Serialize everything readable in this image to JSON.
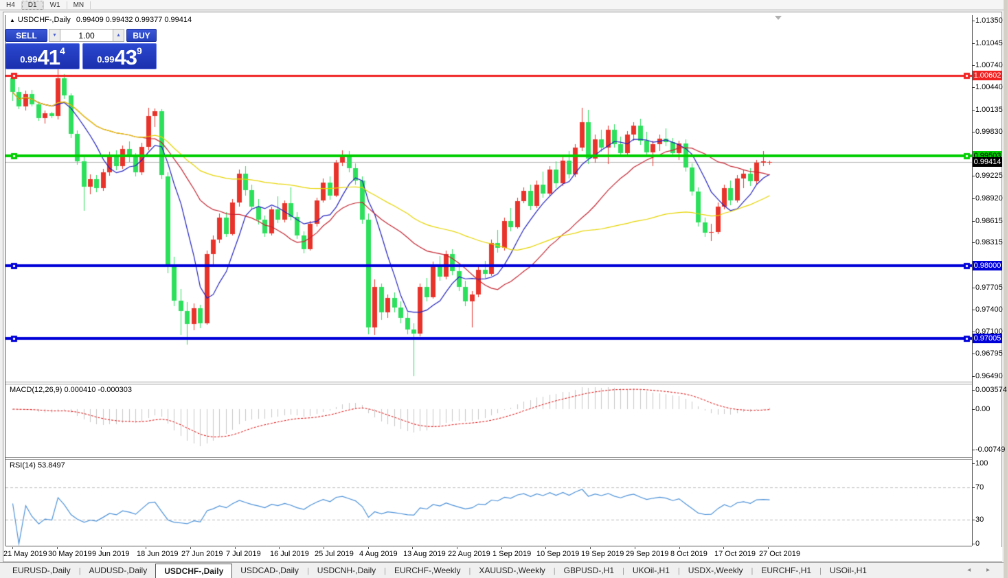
{
  "toolbar": {
    "timeframes": [
      {
        "label": "H4",
        "active": false
      },
      {
        "label": "D1",
        "active": true
      },
      {
        "label": "W1",
        "active": false
      },
      {
        "label": "MN",
        "active": false
      }
    ]
  },
  "chart": {
    "title": {
      "symbol_period": "USDCHF-,Daily",
      "ohlc": "0.99409 0.99432 0.99377 0.99414"
    },
    "trade_panel": {
      "sell_label": "SELL",
      "buy_label": "BUY",
      "volume": "1.00",
      "spin_down": "▼",
      "spin_up": "▲",
      "sell_price": {
        "prefix": "0.99",
        "big": "41",
        "sup": "4"
      },
      "buy_price": {
        "prefix": "0.99",
        "big": "43",
        "sup": "9"
      }
    }
  },
  "price_axis": {
    "ticks": [
      "1.01350",
      "1.01045",
      "1.00740",
      "1.00440",
      "1.00135",
      "0.99830",
      "0.99225",
      "0.98920",
      "0.98615",
      "0.98315",
      "0.97705",
      "0.97400",
      "0.97100",
      "0.96795",
      "0.96490"
    ],
    "badges": [
      {
        "value": "1.00602",
        "bg": "#f02020",
        "fg": "#ffffff"
      },
      {
        "value": "0.99503",
        "bg": "#00ce00",
        "fg": "#000000"
      },
      {
        "value": "0.99414",
        "bg": "#000000",
        "fg": "#ffffff"
      },
      {
        "value": "0.98000",
        "bg": "#0000d8",
        "fg": "#ffffff"
      },
      {
        "value": "0.97005",
        "bg": "#0000d8",
        "fg": "#ffffff"
      }
    ]
  },
  "macd_panel": {
    "label": "MACD(12,26,9) 0.000410 -0.000303",
    "axis_ticks": [
      {
        "label": "0.003574",
        "value": 0.003574
      },
      {
        "label": "0.00",
        "value": 0
      },
      {
        "label": "-0.00749",
        "value": -0.00749
      }
    ]
  },
  "rsi_panel": {
    "label": "RSI(14) 53.8497",
    "axis_ticks": [
      {
        "label": "100",
        "value": 100
      },
      {
        "label": "70",
        "value": 70
      },
      {
        "label": "30",
        "value": 30
      },
      {
        "label": "0",
        "value": 0
      }
    ],
    "levels": [
      70,
      30
    ]
  },
  "tab_bar": {
    "tabs": [
      "EURUSD-,Daily",
      "AUDUSD-,Daily",
      "USDCHF-,Daily",
      "USDCAD-,Daily",
      "USDCNH-,Daily",
      "EURCHF-,Weekly",
      "XAUUSD-,Weekly",
      "GBPUSD-,H1",
      "UKOil-,H1",
      "USDX-,Weekly",
      "EURCHF-,H1",
      "USOil-,H1"
    ],
    "active_index": 2,
    "arrows": "◂ ▸"
  },
  "chart_data": {
    "type": "candlestick",
    "symbol": "USDCHF",
    "period": "Daily",
    "color_convention": "red = bullish (close>=open), green = bearish",
    "bull_color": "#e8332a",
    "bear_color": "#2ce05c",
    "y_axis_range": [
      0.9649,
      1.0135
    ],
    "date_labels": [
      "21 May 2019",
      "30 May 2019",
      "9 Jun 2019",
      "18 Jun 2019",
      "27 Jun 2019",
      "7 Jul 2019",
      "16 Jul 2019",
      "25 Jul 2019",
      "4 Aug 2019",
      "13 Aug 2019",
      "22 Aug 2019",
      "1 Sep 2019",
      "10 Sep 2019",
      "19 Sep 2019",
      "29 Sep 2019",
      "8 Oct 2019",
      "17 Oct 2019",
      "27 Oct 2019"
    ],
    "horizontal_lines": [
      {
        "price": 1.00602,
        "color": "#f02020",
        "width": 3
      },
      {
        "price": 0.99503,
        "color": "#00ce00",
        "width": 4
      },
      {
        "price": 0.98,
        "color": "#0000d8",
        "width": 4
      },
      {
        "price": 0.97005,
        "color": "#0000d8",
        "width": 4
      }
    ],
    "current_price": {
      "value": 0.99414,
      "line_color": "#b4b4b4"
    },
    "overlays": [
      {
        "name": "ma-fast",
        "color": "#2020c0",
        "period": 7
      },
      {
        "name": "ma-mid",
        "color": "#c42430",
        "period": 21
      },
      {
        "name": "ma-slow",
        "color": "#e6d400",
        "period": 55
      }
    ],
    "indicators": [
      {
        "name": "MACD",
        "params": [
          12,
          26,
          9
        ],
        "current_values": [
          0.00041,
          -0.000303
        ],
        "histogram_color": "#c6c6c6",
        "signal_color": "#e00000",
        "y_top": 0.003574,
        "y_bottom": -0.00749
      },
      {
        "name": "RSI",
        "params": [
          14
        ],
        "current_value": 53.8497,
        "color": "#4a90d8",
        "levels": [
          70,
          30
        ],
        "y_range": [
          0,
          100
        ]
      }
    ],
    "candles_ohlc": [
      [
        1.0056,
        1.0062,
        1.0025,
        1.0037
      ],
      [
        1.0037,
        1.0044,
        1.0014,
        1.0018
      ],
      [
        1.0018,
        1.0039,
        1.0012,
        1.0035
      ],
      [
        1.0035,
        1.004,
        1.0018,
        1.0021
      ],
      [
        1.0021,
        1.0024,
        0.9998,
        1.0002
      ],
      [
        1.0002,
        1.0012,
        0.9994,
        1.0008
      ],
      [
        1.0008,
        1.001,
        1.0002,
        1.0005
      ],
      [
        1.0005,
        1.0068,
        1.0,
        1.0056
      ],
      [
        1.0056,
        1.0062,
        1.0028,
        1.0033
      ],
      [
        1.0033,
        1.0036,
        0.9975,
        0.998
      ],
      [
        0.998,
        0.9985,
        0.9938,
        0.9943
      ],
      [
        0.9943,
        0.995,
        0.9875,
        0.9908
      ],
      [
        0.9908,
        0.9925,
        0.9898,
        0.9918
      ],
      [
        0.9918,
        0.9924,
        0.99,
        0.9906
      ],
      [
        0.9906,
        0.9932,
        0.9902,
        0.9928
      ],
      [
        0.9928,
        0.9956,
        0.9923,
        0.995
      ],
      [
        0.995,
        0.9958,
        0.993,
        0.9936
      ],
      [
        0.9936,
        0.9964,
        0.9932,
        0.996
      ],
      [
        0.996,
        0.997,
        0.9942,
        0.9948
      ],
      [
        0.9948,
        0.9954,
        0.9922,
        0.9928
      ],
      [
        0.9928,
        0.9968,
        0.9924,
        0.9962
      ],
      [
        0.9962,
        1.0016,
        0.9958,
        1.0005
      ],
      [
        1.0005,
        1.0015,
        0.999,
        1.0011
      ],
      [
        1.0011,
        1.0014,
        0.9918,
        0.9924
      ],
      [
        0.9922,
        0.9928,
        0.979,
        0.98
      ],
      [
        0.98,
        0.9812,
        0.9745,
        0.9752
      ],
      [
        0.9752,
        0.9768,
        0.9705,
        0.9738
      ],
      [
        0.9738,
        0.975,
        0.9692,
        0.972
      ],
      [
        0.972,
        0.9748,
        0.9712,
        0.9742
      ],
      [
        0.9742,
        0.9747,
        0.9715,
        0.9721
      ],
      [
        0.9721,
        0.9821,
        0.9719,
        0.9816
      ],
      [
        0.9816,
        0.9841,
        0.9799,
        0.9836
      ],
      [
        0.9836,
        0.9871,
        0.9831,
        0.9866
      ],
      [
        0.9866,
        0.9873,
        0.9839,
        0.9843
      ],
      [
        0.9843,
        0.9891,
        0.9841,
        0.9886
      ],
      [
        0.9886,
        0.9931,
        0.9881,
        0.9926
      ],
      [
        0.9926,
        0.9936,
        0.9896,
        0.9903
      ],
      [
        0.9903,
        0.9911,
        0.9876,
        0.9881
      ],
      [
        0.9881,
        0.9891,
        0.9856,
        0.9863
      ],
      [
        0.9863,
        0.9869,
        0.9839,
        0.9844
      ],
      [
        0.9844,
        0.9881,
        0.9841,
        0.9877
      ],
      [
        0.9877,
        0.9895,
        0.9858,
        0.9863
      ],
      [
        0.9863,
        0.9889,
        0.9859,
        0.9885
      ],
      [
        0.9885,
        0.9907,
        0.9862,
        0.9867
      ],
      [
        0.9867,
        0.9873,
        0.9837,
        0.9841
      ],
      [
        0.9841,
        0.9847,
        0.9817,
        0.9823
      ],
      [
        0.9823,
        0.9861,
        0.9821,
        0.9857
      ],
      [
        0.9857,
        0.9893,
        0.9854,
        0.9889
      ],
      [
        0.9889,
        0.9919,
        0.9886,
        0.9914
      ],
      [
        0.9914,
        0.9922,
        0.989,
        0.9896
      ],
      [
        0.9896,
        0.9945,
        0.9894,
        0.9941
      ],
      [
        0.9941,
        0.9958,
        0.9936,
        0.9951
      ],
      [
        0.9951,
        0.9957,
        0.9928,
        0.9933
      ],
      [
        0.9933,
        0.994,
        0.9911,
        0.9916
      ],
      [
        0.9916,
        0.9922,
        0.9857,
        0.9863
      ],
      [
        0.9863,
        0.9871,
        0.9706,
        0.9716
      ],
      [
        0.9716,
        0.9781,
        0.9705,
        0.9771
      ],
      [
        0.9771,
        0.9776,
        0.9726,
        0.9736
      ],
      [
        0.9736,
        0.9761,
        0.9729,
        0.9756
      ],
      [
        0.9756,
        0.9763,
        0.9736,
        0.9743
      ],
      [
        0.9743,
        0.9751,
        0.9721,
        0.9729
      ],
      [
        0.9729,
        0.9736,
        0.9706,
        0.9713
      ],
      [
        0.9713,
        0.9721,
        0.9649,
        0.9707
      ],
      [
        0.9707,
        0.9776,
        0.9703,
        0.9771
      ],
      [
        0.9771,
        0.9783,
        0.9751,
        0.9757
      ],
      [
        0.9757,
        0.9806,
        0.9755,
        0.9801
      ],
      [
        0.9801,
        0.9813,
        0.9779,
        0.9785
      ],
      [
        0.9785,
        0.9821,
        0.9781,
        0.9816
      ],
      [
        0.9816,
        0.9823,
        0.9787,
        0.9793
      ],
      [
        0.9793,
        0.9801,
        0.9765,
        0.9771
      ],
      [
        0.9771,
        0.9779,
        0.9745,
        0.9751
      ],
      [
        0.9751,
        0.9765,
        0.9716,
        0.9761
      ],
      [
        0.9761,
        0.9799,
        0.9757,
        0.9794
      ],
      [
        0.9794,
        0.9807,
        0.9783,
        0.9789
      ],
      [
        0.9789,
        0.9836,
        0.9786,
        0.9831
      ],
      [
        0.9831,
        0.9849,
        0.9818,
        0.9824
      ],
      [
        0.9824,
        0.9866,
        0.9821,
        0.9861
      ],
      [
        0.9861,
        0.9879,
        0.9847,
        0.9853
      ],
      [
        0.9853,
        0.9893,
        0.9851,
        0.9888
      ],
      [
        0.9888,
        0.9907,
        0.9885,
        0.9902
      ],
      [
        0.9902,
        0.9911,
        0.9876,
        0.9882
      ],
      [
        0.9882,
        0.9916,
        0.9879,
        0.9911
      ],
      [
        0.9911,
        0.9929,
        0.9893,
        0.9899
      ],
      [
        0.9899,
        0.9936,
        0.9896,
        0.9931
      ],
      [
        0.9931,
        0.9943,
        0.9906,
        0.9913
      ],
      [
        0.9913,
        0.9949,
        0.9909,
        0.9944
      ],
      [
        0.9944,
        0.9957,
        0.9919,
        0.9925
      ],
      [
        0.9925,
        0.9966,
        0.9921,
        0.9961
      ],
      [
        0.9961,
        1.0016,
        0.9957,
        0.9996
      ],
      [
        0.9996,
        1.0013,
        0.9939,
        0.9946
      ],
      [
        0.9946,
        0.9979,
        0.9941,
        0.9973
      ],
      [
        0.9973,
        0.9986,
        0.9956,
        0.9961
      ],
      [
        0.9961,
        0.9991,
        0.9939,
        0.9986
      ],
      [
        0.9986,
        0.9993,
        0.9961,
        0.9966
      ],
      [
        0.9966,
        0.9976,
        0.9949,
        0.9954
      ],
      [
        0.9954,
        0.9984,
        0.9951,
        0.9979
      ],
      [
        0.9979,
        0.9996,
        0.9971,
        0.9991
      ],
      [
        0.9991,
        1.0001,
        0.9965,
        0.9971
      ],
      [
        0.9971,
        0.9983,
        0.9949,
        0.9955
      ],
      [
        0.9955,
        0.9971,
        0.9936,
        0.9966
      ],
      [
        0.9966,
        0.9979,
        0.9957,
        0.9974
      ],
      [
        0.9974,
        0.9988,
        0.9963,
        0.9969
      ],
      [
        0.9969,
        0.9975,
        0.9949,
        0.9954
      ],
      [
        0.9954,
        0.9971,
        0.9945,
        0.9967
      ],
      [
        0.9967,
        0.9973,
        0.9929,
        0.9934
      ],
      [
        0.9934,
        0.994,
        0.9896,
        0.9901
      ],
      [
        0.9901,
        0.9907,
        0.9854,
        0.9859
      ],
      [
        0.9859,
        0.9866,
        0.9839,
        0.9845
      ],
      [
        0.9845,
        0.9857,
        0.9834,
        0.9846
      ],
      [
        0.9846,
        0.9886,
        0.9843,
        0.9881
      ],
      [
        0.9881,
        0.9911,
        0.9877,
        0.9906
      ],
      [
        0.9906,
        0.9916,
        0.9883,
        0.9889
      ],
      [
        0.9889,
        0.9924,
        0.9886,
        0.9919
      ],
      [
        0.9919,
        0.9931,
        0.9906,
        0.9926
      ],
      [
        0.9926,
        0.9933,
        0.9909,
        0.9915
      ],
      [
        0.9915,
        0.9945,
        0.9911,
        0.9941
      ],
      [
        0.9941,
        0.9957,
        0.9936,
        0.9943
      ],
      [
        0.99409,
        0.99432,
        0.99377,
        0.99414
      ]
    ]
  }
}
